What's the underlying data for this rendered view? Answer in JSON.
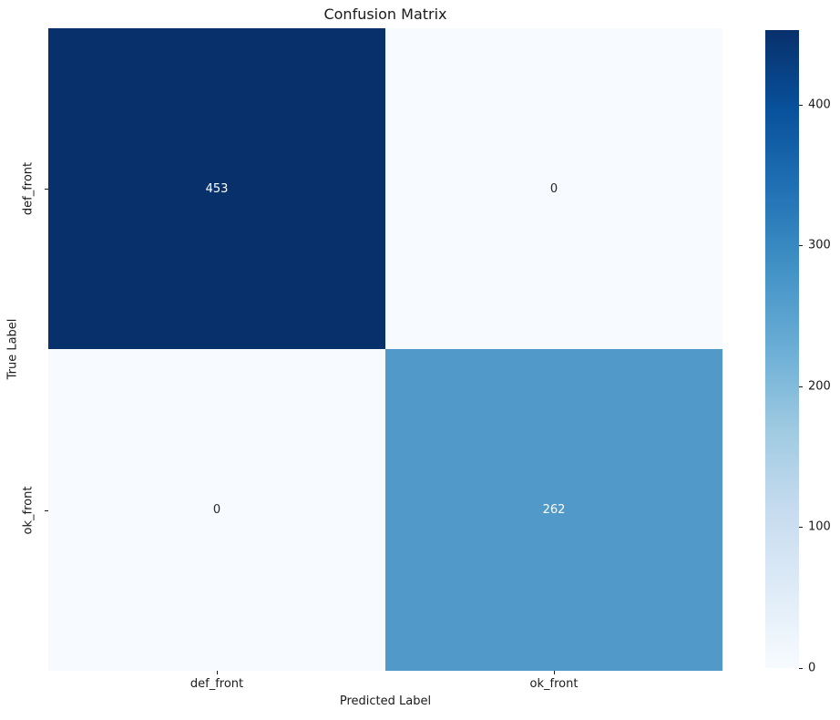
{
  "figure": {
    "background_color": "#ffffff",
    "text_color": "#1a1a1a"
  },
  "chart_data": {
    "type": "heatmap",
    "title": "Confusion Matrix",
    "xlabel": "Predicted Label",
    "ylabel": "True Label",
    "x_categories": [
      "def_front",
      "ok_front"
    ],
    "y_categories": [
      "def_front",
      "ok_front"
    ],
    "values": [
      [
        453,
        0
      ],
      [
        0,
        262
      ]
    ],
    "vmin": 0,
    "vmax": 453,
    "colormap": "Blues",
    "grid": false,
    "cell_colors": [
      [
        "#08306b",
        "#f7fbff"
      ],
      [
        "#f7fbff",
        "#5199c9"
      ]
    ],
    "annotation_colors": [
      [
        "#ffffff",
        "#262626"
      ],
      [
        "#262626",
        "#ffffff"
      ]
    ],
    "colorbar": {
      "position": "right",
      "ticks": [
        0,
        100,
        200,
        300,
        400
      ],
      "gradient_stops": [
        "#f7fbff",
        "#deebf7",
        "#c6dbef",
        "#9ecae1",
        "#6baed6",
        "#4292c6",
        "#2171b5",
        "#08519c",
        "#08306b"
      ]
    }
  }
}
